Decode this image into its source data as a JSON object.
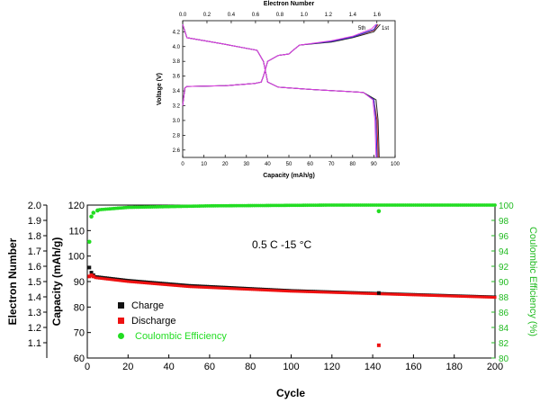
{
  "chart_data": [
    {
      "type": "line",
      "xlabel": "Capacity (mAh/g)",
      "ylabel": "Voltage (V)",
      "top_axis_label": "Electron Number",
      "xlim": [
        0,
        100
      ],
      "ylim": [
        2.5,
        4.35
      ],
      "x_ticks": [
        "0",
        "10",
        "20",
        "30",
        "40",
        "50",
        "60",
        "70",
        "80",
        "90",
        "100"
      ],
      "top_ticks": [
        "0.0",
        "0.2",
        "0.4",
        "0.6",
        "0.8",
        "1.0",
        "1.2",
        "1.4",
        "1.6"
      ],
      "top_lim": [
        0,
        1.75
      ],
      "y_ticks": [
        "2.6",
        "2.8",
        "3.0",
        "3.2",
        "3.4",
        "3.6",
        "3.8",
        "4.0",
        "4.2"
      ],
      "annotations": [
        "5th",
        "1st"
      ],
      "series": [
        {
          "color": "#222222",
          "charge": [
            [
              0,
              3.2
            ],
            [
              1,
              3.44
            ],
            [
              2,
              3.46
            ],
            [
              20,
              3.47
            ],
            [
              34,
              3.5
            ],
            [
              37,
              3.52
            ],
            [
              38,
              3.6
            ],
            [
              40,
              3.8
            ],
            [
              45,
              3.88
            ],
            [
              50,
              3.9
            ],
            [
              52,
              3.95
            ],
            [
              55,
              4.02
            ],
            [
              70,
              4.06
            ],
            [
              80,
              4.12
            ],
            [
              90,
              4.2
            ],
            [
              93,
              4.3
            ]
          ],
          "discharge": [
            [
              0,
              4.3
            ],
            [
              2,
              4.12
            ],
            [
              20,
              4.03
            ],
            [
              35,
              3.95
            ],
            [
              38,
              3.8
            ],
            [
              40,
              3.52
            ],
            [
              45,
              3.45
            ],
            [
              60,
              3.42
            ],
            [
              85,
              3.38
            ],
            [
              91,
              3.28
            ],
            [
              92,
              3.0
            ],
            [
              92.5,
              2.5
            ]
          ]
        },
        {
          "color": "#d02020",
          "charge": [
            [
              0,
              3.2
            ],
            [
              1,
              3.44
            ],
            [
              2,
              3.46
            ],
            [
              20,
              3.47
            ],
            [
              34,
              3.5
            ],
            [
              37,
              3.52
            ],
            [
              38,
              3.6
            ],
            [
              40,
              3.8
            ],
            [
              45,
              3.88
            ],
            [
              50,
              3.9
            ],
            [
              52,
              3.95
            ],
            [
              55,
              4.02
            ],
            [
              70,
              4.07
            ],
            [
              80,
              4.13
            ],
            [
              90,
              4.22
            ],
            [
              92,
              4.3
            ]
          ],
          "discharge": [
            [
              0,
              4.3
            ],
            [
              2,
              4.12
            ],
            [
              20,
              4.03
            ],
            [
              35,
              3.95
            ],
            [
              38,
              3.8
            ],
            [
              40,
              3.52
            ],
            [
              45,
              3.45
            ],
            [
              60,
              3.42
            ],
            [
              85,
              3.38
            ],
            [
              90,
              3.28
            ],
            [
              91.5,
              3.0
            ],
            [
              92,
              2.5
            ]
          ]
        },
        {
          "color": "#2030d0",
          "charge": [
            [
              0,
              3.2
            ],
            [
              1,
              3.44
            ],
            [
              2,
              3.46
            ],
            [
              20,
              3.47
            ],
            [
              34,
              3.5
            ],
            [
              37,
              3.52
            ],
            [
              38,
              3.6
            ],
            [
              40,
              3.8
            ],
            [
              45,
              3.88
            ],
            [
              50,
              3.9
            ],
            [
              52,
              3.95
            ],
            [
              55,
              4.02
            ],
            [
              70,
              4.07
            ],
            [
              80,
              4.13
            ],
            [
              90,
              4.23
            ],
            [
              91.5,
              4.3
            ]
          ],
          "discharge": [
            [
              0,
              4.3
            ],
            [
              2,
              4.12
            ],
            [
              20,
              4.03
            ],
            [
              35,
              3.95
            ],
            [
              38,
              3.8
            ],
            [
              40,
              3.52
            ],
            [
              45,
              3.45
            ],
            [
              60,
              3.42
            ],
            [
              85,
              3.38
            ],
            [
              90,
              3.28
            ],
            [
              91,
              3.0
            ],
            [
              91.5,
              2.5
            ]
          ]
        },
        {
          "color": "#e040e0",
          "charge": [
            [
              0,
              3.2
            ],
            [
              1,
              3.44
            ],
            [
              2,
              3.46
            ],
            [
              20,
              3.47
            ],
            [
              34,
              3.5
            ],
            [
              37,
              3.52
            ],
            [
              38,
              3.6
            ],
            [
              40,
              3.8
            ],
            [
              45,
              3.88
            ],
            [
              50,
              3.9
            ],
            [
              52,
              3.95
            ],
            [
              55,
              4.02
            ],
            [
              70,
              4.08
            ],
            [
              80,
              4.14
            ],
            [
              89,
              4.24
            ],
            [
              91,
              4.3
            ]
          ],
          "discharge": [
            [
              0,
              4.3
            ],
            [
              2,
              4.12
            ],
            [
              20,
              4.03
            ],
            [
              35,
              3.95
            ],
            [
              38,
              3.8
            ],
            [
              40,
              3.52
            ],
            [
              45,
              3.45
            ],
            [
              60,
              3.42
            ],
            [
              85,
              3.38
            ],
            [
              89.5,
              3.28
            ],
            [
              90.5,
              3.0
            ],
            [
              91,
              2.5
            ]
          ]
        }
      ]
    },
    {
      "type": "scatter",
      "xlabel": "Cycle",
      "ylabel_left_outer": "Electron Number",
      "ylabel_left": "Capacity (mAh/g)",
      "ylabel_right": "Coulombic Efficiency (%)",
      "xlim": [
        0,
        200
      ],
      "ylim": [
        60,
        120
      ],
      "y_outer_lim": [
        1.0,
        2.0
      ],
      "y_right_lim": [
        80,
        100
      ],
      "x_ticks": [
        "0",
        "20",
        "40",
        "60",
        "80",
        "100",
        "120",
        "140",
        "160",
        "180",
        "200"
      ],
      "y_ticks": [
        "60",
        "70",
        "80",
        "90",
        "100",
        "110",
        "120"
      ],
      "y_outer_ticks": [
        "1.1",
        "1.2",
        "1.3",
        "1.4",
        "1.5",
        "1.6",
        "1.7",
        "1.8",
        "1.9",
        "2.0"
      ],
      "y_right_ticks": [
        "80",
        "82",
        "84",
        "86",
        "88",
        "90",
        "92",
        "94",
        "96",
        "98",
        "100"
      ],
      "annotation": "0.5 C   -15 °C",
      "legend": [
        {
          "label": "Charge",
          "color": "#111111",
          "shape": "square"
        },
        {
          "label": "Discharge",
          "color": "#ee1111",
          "shape": "square"
        },
        {
          "label": "Coulombic Efficiency",
          "color": "#22dd22",
          "shape": "circle"
        }
      ],
      "series": [
        {
          "name": "Charge",
          "color": "#111111",
          "first_points": [
            [
              1,
              95.5
            ],
            [
              2,
              93.5
            ],
            [
              3,
              92.5
            ]
          ],
          "trend": [
            [
              4,
              92.0
            ],
            [
              20,
              90.5
            ],
            [
              50,
              88.5
            ],
            [
              100,
              86.5
            ],
            [
              150,
              85.2
            ],
            [
              200,
              84.0
            ]
          ],
          "extra_points": [
            [
              143,
              85.5
            ]
          ]
        },
        {
          "name": "Discharge",
          "color": "#ee1111",
          "first_points": [
            [
              1,
              92.0
            ],
            [
              2,
              92.5
            ],
            [
              3,
              92.0
            ]
          ],
          "trend": [
            [
              4,
              91.5
            ],
            [
              20,
              90.0
            ],
            [
              50,
              88.0
            ],
            [
              100,
              86.2
            ],
            [
              150,
              85.0
            ],
            [
              200,
              83.8
            ]
          ],
          "extra_points": [
            [
              143,
              65.0
            ]
          ]
        },
        {
          "name": "Coulombic Efficiency",
          "color": "#22dd22",
          "first_points": [
            [
              1,
              95.2
            ],
            [
              2,
              98.5
            ],
            [
              3,
              99.0
            ],
            [
              5,
              99.3
            ]
          ],
          "trend": [
            [
              6,
              99.4
            ],
            [
              20,
              99.7
            ],
            [
              60,
              99.9
            ],
            [
              120,
              100.0
            ],
            [
              200,
              100.0
            ]
          ],
          "extra_points": [
            [
              143,
              99.2
            ]
          ]
        }
      ]
    }
  ]
}
